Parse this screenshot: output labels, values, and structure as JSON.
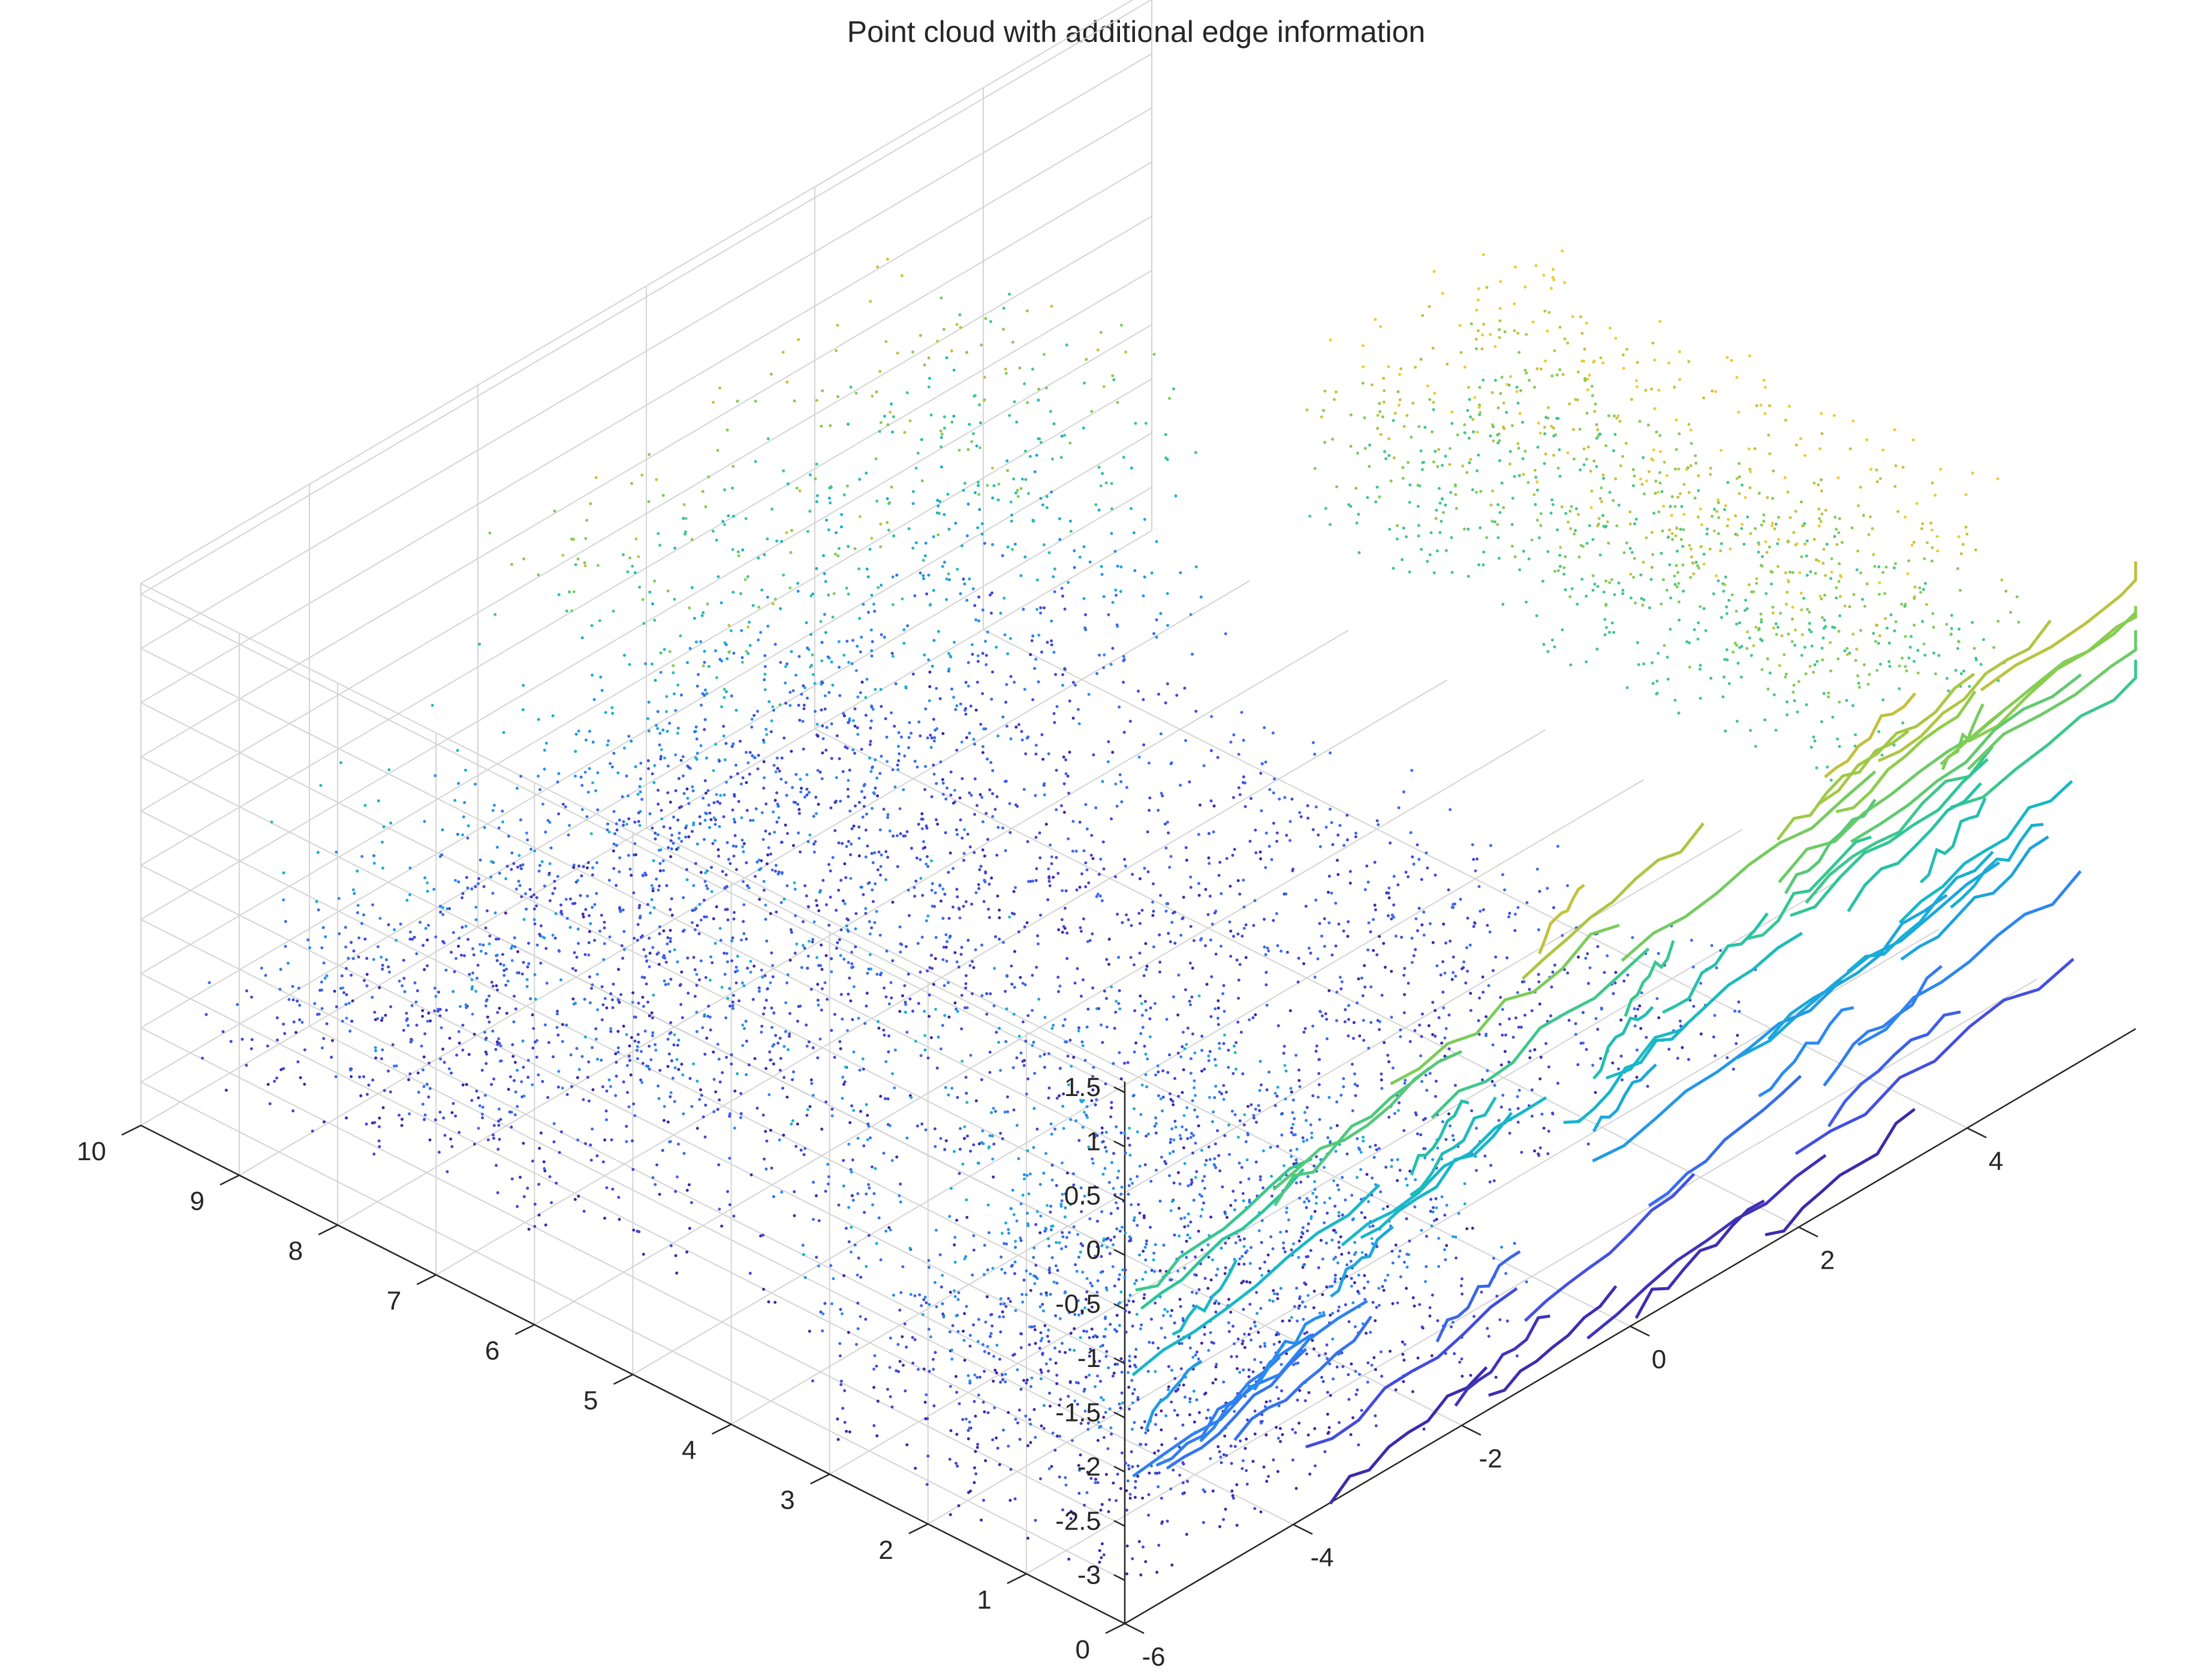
{
  "chart_data": {
    "type": "scatter",
    "title": "Point cloud with additional edge information",
    "xlabel": "",
    "ylabel": "",
    "zlabel": "",
    "grid": true,
    "xlim": [
      -6,
      6
    ],
    "ylim": [
      0,
      10
    ],
    "zlim": [
      -3.4,
      1.6
    ],
    "x_ticks": [
      "-6",
      "-4",
      "-2",
      "0",
      "2",
      "4"
    ],
    "y_ticks": [
      "0",
      "1",
      "2",
      "3",
      "4",
      "5",
      "6",
      "7",
      "8",
      "9",
      "10"
    ],
    "z_ticks": [
      "-3",
      "-2.5",
      "-2",
      "-1.5",
      "-1",
      "-0.5",
      "0",
      "0.5",
      "1",
      "1.5"
    ],
    "colormap": [
      "#3e26a8",
      "#4355e8",
      "#2a8bf2",
      "#15b4d0",
      "#2bc69a",
      "#8ccd4e",
      "#eaba30",
      "#fff033"
    ],
    "series": [
      {
        "name": "",
        "kind": "lidar-points",
        "clusters": [
          {
            "x": [
              -5.0,
              -1.5
            ],
            "y": [
              0.5,
              10.0
            ],
            "z": [
              -3.3,
              -1.0
            ]
          },
          {
            "x": [
              -2.0,
              4.0
            ],
            "y": [
              7.5,
              10.0
            ],
            "z": [
              -3.2,
              0.6
            ]
          },
          {
            "x": [
              -5.5,
              2.0
            ],
            "y": [
              6.5,
              10.0
            ],
            "z": [
              -3.2,
              -2.0
            ]
          },
          {
            "x": [
              -6.0,
              -1.0
            ],
            "y": [
              0.0,
              3.5
            ],
            "z": [
              -3.3,
              -1.5
            ]
          },
          {
            "x": [
              -1.5,
              3.5
            ],
            "y": [
              1.5,
              7.0
            ],
            "z": [
              -3.2,
              -2.2
            ]
          },
          {
            "x": [
              3.5,
              6.0
            ],
            "y": [
              1.0,
              6.5
            ],
            "z": [
              -0.6,
              1.2
            ]
          }
        ]
      },
      {
        "name": "",
        "kind": "edge-contours",
        "plane": "y=0",
        "x": [
          -6,
          6
        ],
        "z": [
          -3.4,
          1.6
        ]
      }
    ]
  }
}
